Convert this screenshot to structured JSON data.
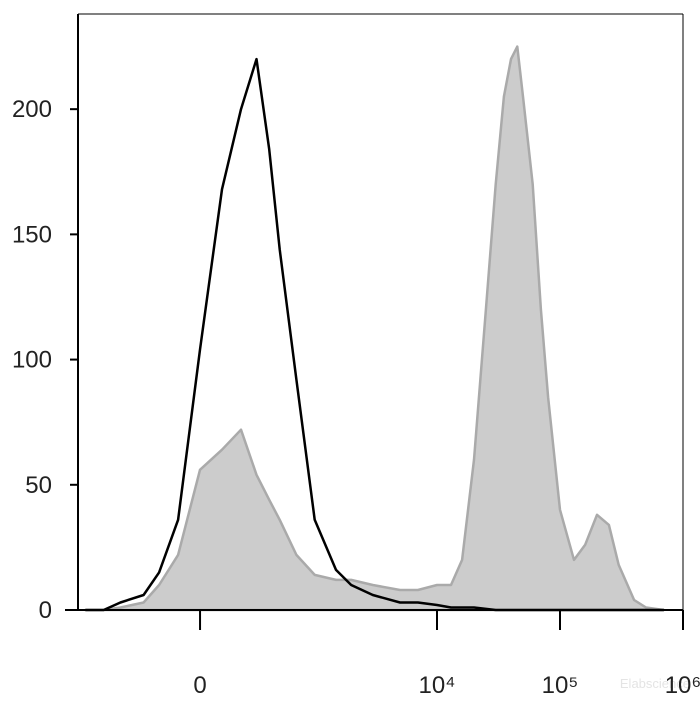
{
  "chart_data": {
    "type": "line",
    "xscale": "biexponential",
    "xlim": [
      -1475,
      1000000
    ],
    "xticks": [
      0,
      {
        "value": 10000,
        "label": "10⁴"
      },
      {
        "value": 100000,
        "label": "10⁵"
      },
      {
        "value": 1000000,
        "label": "10⁶"
      }
    ],
    "ylim": [
      0,
      238
    ],
    "yticks": [
      0,
      50,
      100,
      150,
      200
    ],
    "watermark": "Elabscience",
    "series": [
      {
        "color": "#aaaaaa",
        "fill": "#cccccc",
        "x": [
          -1000,
          -700,
          -500,
          -300,
          -200,
          -100,
          0,
          100,
          200,
          300,
          400,
          500,
          700,
          1000,
          1500,
          2000,
          3000,
          5000,
          7000,
          10000,
          13000,
          16000,
          20000,
          25000,
          30000,
          35000,
          40000,
          45000,
          50000,
          60000,
          70000,
          80000,
          100000,
          130000,
          160000,
          200000,
          250000,
          300000,
          400000,
          500000,
          700000
        ],
        "values": [
          0,
          0,
          1,
          3,
          10,
          22,
          56,
          64,
          72,
          54,
          44,
          36,
          22,
          14,
          12,
          12,
          10,
          8,
          8,
          10,
          10,
          20,
          60,
          120,
          170,
          205,
          220,
          225,
          205,
          170,
          120,
          85,
          40,
          20,
          26,
          38,
          34,
          18,
          4,
          1,
          0
        ]
      },
      {
        "color": "#000000",
        "x": [
          -1000,
          -700,
          -500,
          -300,
          -200,
          -100,
          0,
          100,
          200,
          300,
          400,
          500,
          700,
          1000,
          1500,
          2000,
          3000,
          5000,
          7000,
          10000,
          13000,
          20000,
          30000,
          50000,
          100000,
          200000,
          500000,
          700000
        ],
        "values": [
          0,
          0,
          3,
          6,
          15,
          36,
          104,
          168,
          200,
          220,
          184,
          144,
          92,
          36,
          16,
          10,
          6,
          3,
          3,
          2,
          1,
          1,
          0,
          0,
          0,
          0,
          0,
          0
        ]
      }
    ]
  }
}
